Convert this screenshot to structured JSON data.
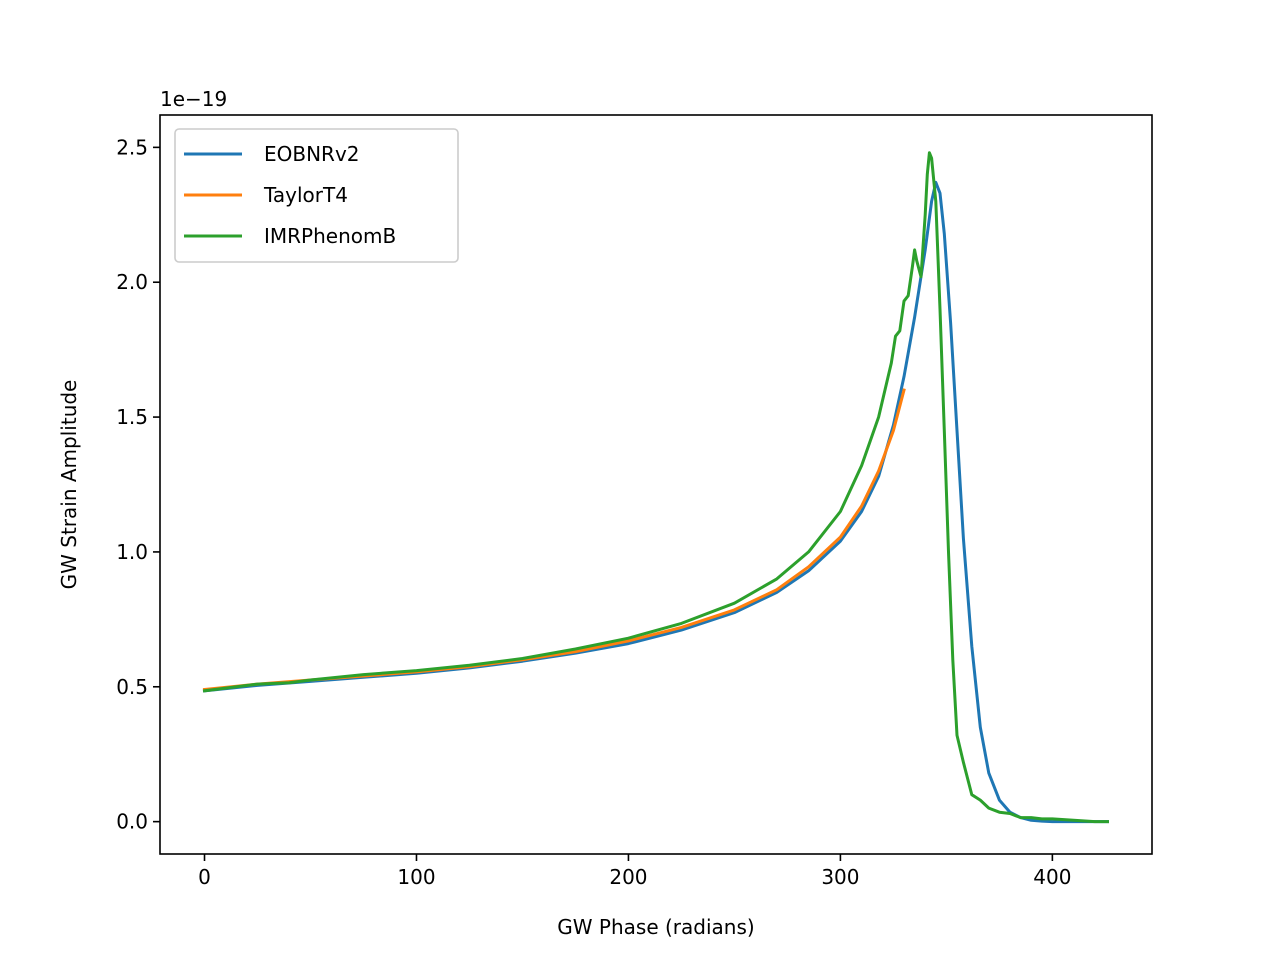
{
  "chart_data": {
    "type": "line",
    "title": "",
    "xlabel": "GW Phase (radians)",
    "ylabel": "GW Strain Amplitude",
    "y_offset_label": "1e−19",
    "xlim": [
      -21,
      447
    ],
    "ylim": [
      -0.12,
      2.62
    ],
    "xticks": [
      0,
      100,
      200,
      300,
      400
    ],
    "xtick_labels": [
      "0",
      "100",
      "200",
      "300",
      "400"
    ],
    "yticks": [
      0.0,
      0.5,
      1.0,
      1.5,
      2.0,
      2.5
    ],
    "ytick_labels": [
      "0.0",
      "0.5",
      "1.0",
      "1.5",
      "2.0",
      "2.5"
    ],
    "grid": false,
    "legend_position": "top-left",
    "series": [
      {
        "name": "EOBNRv2",
        "color": "#1f77b4",
        "x": [
          0,
          25,
          50,
          75,
          100,
          125,
          150,
          175,
          200,
          225,
          250,
          270,
          285,
          300,
          310,
          318,
          325,
          330,
          335,
          340,
          343,
          345,
          347,
          349,
          352,
          355,
          358,
          362,
          366,
          370,
          375,
          380,
          385,
          390,
          395,
          400,
          410,
          420,
          426
        ],
        "y": [
          0.485,
          0.505,
          0.52,
          0.535,
          0.55,
          0.57,
          0.595,
          0.625,
          0.66,
          0.71,
          0.775,
          0.85,
          0.93,
          1.04,
          1.15,
          1.28,
          1.47,
          1.65,
          1.87,
          2.12,
          2.3,
          2.37,
          2.33,
          2.18,
          1.85,
          1.45,
          1.05,
          0.65,
          0.35,
          0.18,
          0.08,
          0.035,
          0.015,
          0.005,
          0.002,
          0.0,
          0.0,
          0.0,
          0.0
        ]
      },
      {
        "name": "TaylorT4",
        "color": "#ff7f0e",
        "x": [
          0,
          25,
          50,
          75,
          100,
          125,
          150,
          175,
          200,
          225,
          250,
          270,
          285,
          300,
          310,
          318,
          325,
          330
        ],
        "y": [
          0.49,
          0.51,
          0.525,
          0.54,
          0.555,
          0.575,
          0.6,
          0.63,
          0.67,
          0.72,
          0.785,
          0.86,
          0.945,
          1.055,
          1.17,
          1.3,
          1.45,
          1.6
        ]
      },
      {
        "name": "IMRPhenomB",
        "color": "#2ca02c",
        "x": [
          0,
          10,
          25,
          40,
          50,
          75,
          100,
          125,
          150,
          175,
          200,
          225,
          250,
          270,
          285,
          300,
          310,
          318,
          324,
          326,
          328,
          330,
          332,
          334,
          335,
          336,
          338,
          340,
          341,
          342,
          343,
          345,
          346,
          347,
          349,
          351,
          353,
          355,
          358,
          362,
          366,
          370,
          375,
          380,
          385,
          390,
          395,
          400,
          410,
          420,
          426
        ],
        "y": [
          0.485,
          0.495,
          0.51,
          0.515,
          0.525,
          0.545,
          0.56,
          0.58,
          0.605,
          0.64,
          0.68,
          0.735,
          0.81,
          0.9,
          1.0,
          1.15,
          1.32,
          1.5,
          1.7,
          1.8,
          1.82,
          1.93,
          1.95,
          2.06,
          2.12,
          2.08,
          2.02,
          2.25,
          2.4,
          2.48,
          2.46,
          2.3,
          2.1,
          1.9,
          1.45,
          1.0,
          0.6,
          0.32,
          0.22,
          0.1,
          0.08,
          0.05,
          0.035,
          0.03,
          0.015,
          0.015,
          0.01,
          0.01,
          0.005,
          0.0,
          0.0
        ]
      }
    ]
  }
}
